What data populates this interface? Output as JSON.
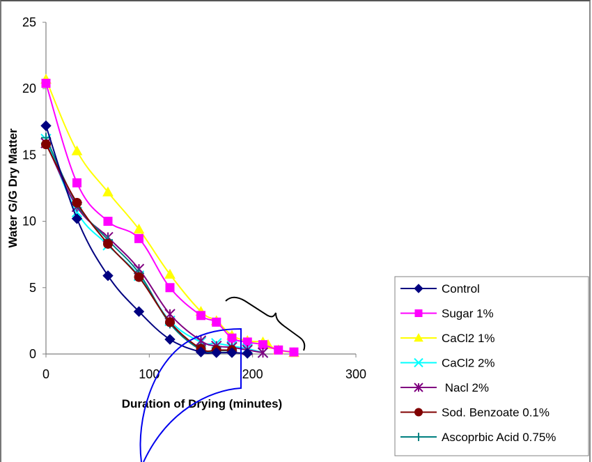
{
  "chart_data": {
    "type": "line",
    "title": "",
    "xlabel": "Duration of Drying (minutes)",
    "ylabel": "Water G/G Dry Matter",
    "xlim": [
      0,
      300
    ],
    "ylim": [
      0,
      25
    ],
    "x_ticks": [
      0,
      100,
      200,
      300
    ],
    "y_ticks": [
      0,
      5,
      10,
      15,
      20,
      25
    ],
    "grid": false,
    "legend_position": "lower right, outside plot",
    "series": [
      {
        "name": "Control",
        "color": "#000080",
        "marker": "diamond",
        "x": [
          0,
          30,
          60,
          90,
          120,
          150,
          165,
          180,
          195
        ],
        "y": [
          17.2,
          10.2,
          5.9,
          3.2,
          1.1,
          0.15,
          0.1,
          0.1,
          0.05
        ]
      },
      {
        "name": "Sugar 1%",
        "color": "#FF00FF",
        "marker": "square",
        "x": [
          0,
          30,
          60,
          90,
          120,
          150,
          165,
          180,
          195,
          210,
          225,
          240
        ],
        "y": [
          20.4,
          12.9,
          10.0,
          8.7,
          5.0,
          2.9,
          2.4,
          1.2,
          0.9,
          0.7,
          0.3,
          0.15
        ]
      },
      {
        "name": "CaCl2 1%",
        "color": "#FFFF00",
        "marker": "triangle",
        "x": [
          0,
          30,
          60,
          90,
          120,
          150,
          165,
          180,
          195,
          210,
          215,
          225,
          240
        ],
        "y": [
          20.7,
          15.3,
          12.2,
          9.4,
          6.0,
          3.2,
          2.5,
          1.4,
          1.0,
          0.9,
          0.7,
          0.3,
          0.1
        ]
      },
      {
        "name": "CaCl2 2%",
        "color": "#00FFFF",
        "marker": "x",
        "x": [
          0,
          30,
          60,
          90,
          120,
          150,
          165,
          180,
          195,
          210
        ],
        "y": [
          16.2,
          10.7,
          8.2,
          5.9,
          2.5,
          0.9,
          0.8,
          0.6,
          0.4,
          0.1
        ]
      },
      {
        "name": "Nacl 2%",
        "color": "#800080",
        "marker": "asterisk",
        "x": [
          0,
          30,
          60,
          90,
          120,
          150,
          165,
          180,
          195,
          210
        ],
        "y": [
          15.9,
          11.1,
          8.8,
          6.4,
          3.0,
          1.0,
          0.6,
          0.5,
          0.3,
          0.1
        ]
      },
      {
        "name": "Sod. Benzoate 0.1%",
        "color": "#800000",
        "marker": "circle",
        "x": [
          0,
          30,
          60,
          90,
          120,
          150,
          165,
          180
        ],
        "y": [
          15.8,
          11.4,
          8.3,
          5.8,
          2.4,
          0.4,
          0.3,
          0.3
        ]
      },
      {
        "name": "Ascoprbic Acid 0.75%",
        "color": "#008080",
        "marker": "plus",
        "x": [
          0,
          30,
          60,
          90,
          120,
          150,
          165,
          180
        ],
        "y": [
          16.3,
          11.3,
          8.6,
          6.1,
          2.3,
          0.3,
          0.25,
          0.25
        ]
      }
    ],
    "annotations": [
      "curly brace over tail points (x≈175–250)",
      "blue curved arrow-like outline shape near x≈90–190"
    ]
  },
  "legend": {
    "items": [
      {
        "label": "Control"
      },
      {
        "label": "Sugar 1%"
      },
      {
        "label": "CaCl2 1%"
      },
      {
        "label": "CaCl2 2%"
      },
      {
        "label": " Nacl 2%"
      },
      {
        "label": "Sod. Benzoate 0.1%"
      },
      {
        "label": "Ascoprbic Acid 0.75%"
      }
    ]
  },
  "axes": {
    "x_tick_labels": [
      "0",
      "100",
      "200",
      "300"
    ],
    "y_tick_labels": [
      "0",
      "5",
      "10",
      "15",
      "20",
      "25"
    ]
  }
}
